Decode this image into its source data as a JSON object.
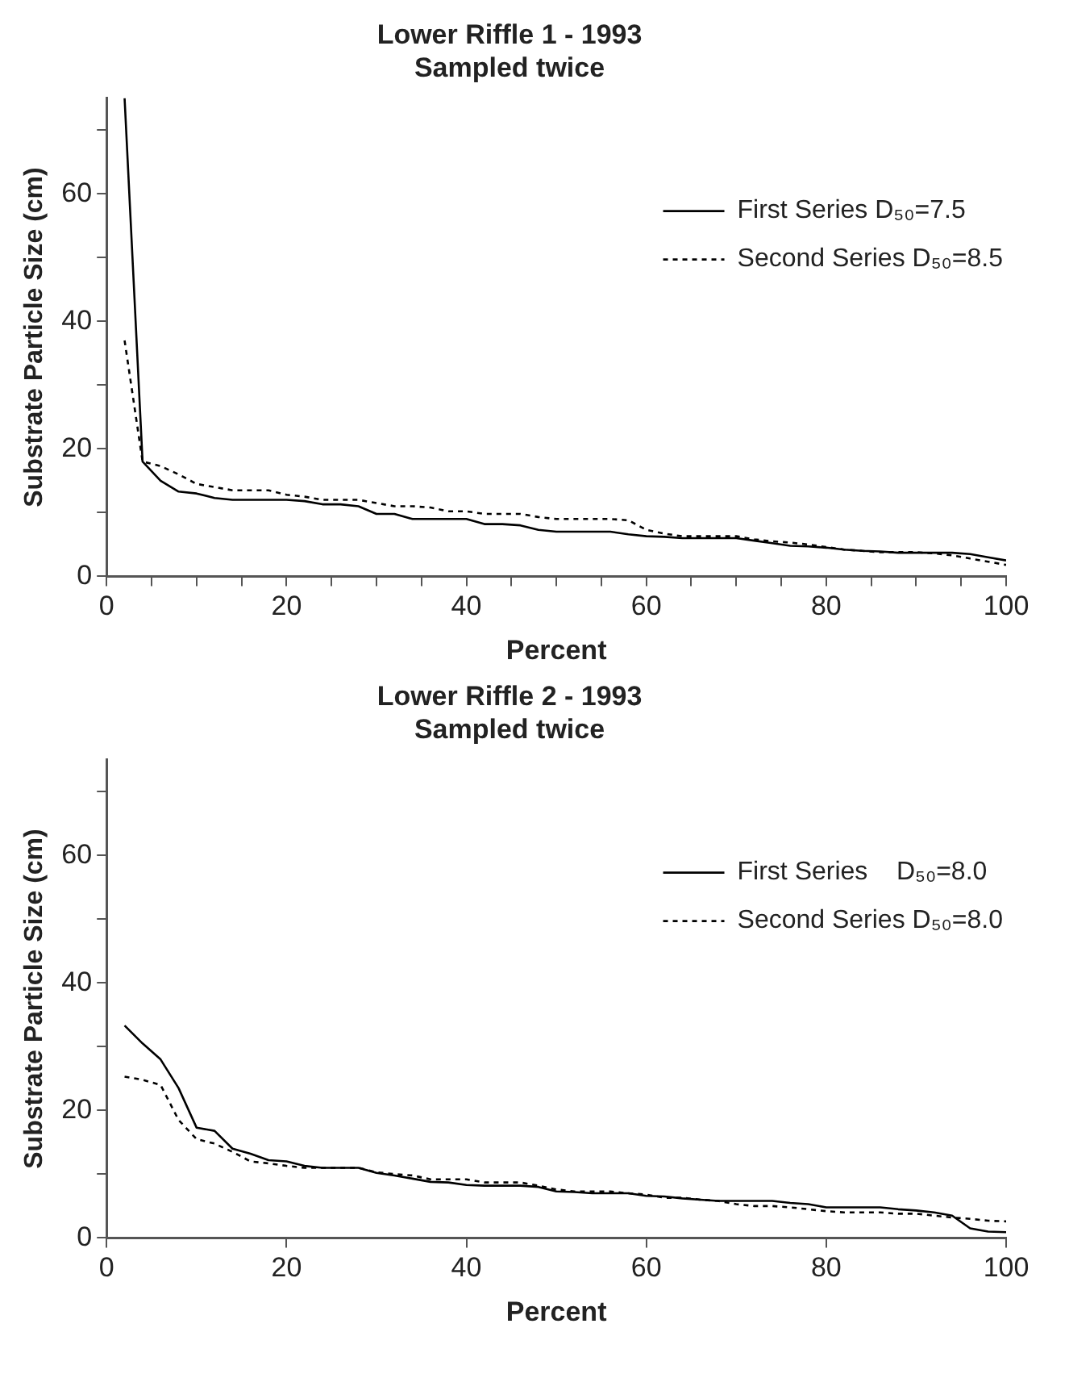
{
  "chart_data": [
    {
      "type": "line",
      "title": "Lower Riffle 1 - 1993",
      "subtitle": "Sampled twice",
      "xlabel": "Percent",
      "ylabel": "Substrate Particle Size (cm)",
      "x": [
        2,
        4,
        6,
        8,
        10,
        12,
        14,
        16,
        18,
        20,
        22,
        24,
        26,
        28,
        30,
        32,
        34,
        36,
        38,
        40,
        42,
        44,
        46,
        48,
        50,
        52,
        54,
        56,
        58,
        60,
        62,
        64,
        66,
        68,
        70,
        72,
        74,
        76,
        78,
        80,
        82,
        84,
        86,
        88,
        90,
        92,
        94,
        96,
        98,
        100
      ],
      "xlim": [
        0,
        100
      ],
      "ylim": [
        0,
        75
      ],
      "xticks": [
        0,
        {
          "value": 5,
          "label": null
        },
        {
          "value": 10,
          "label": null
        },
        {
          "value": 15,
          "label": null
        },
        20,
        {
          "value": 25,
          "label": null
        },
        {
          "value": 30,
          "label": null
        },
        {
          "value": 35,
          "label": null
        },
        40,
        {
          "value": 45,
          "label": null
        },
        {
          "value": 50,
          "label": null
        },
        {
          "value": 55,
          "label": null
        },
        60,
        {
          "value": 65,
          "label": null
        },
        {
          "value": 70,
          "label": null
        },
        {
          "value": 75,
          "label": null
        },
        80,
        {
          "value": 85,
          "label": null
        },
        {
          "value": 90,
          "label": null
        },
        {
          "value": 95,
          "label": null
        },
        100
      ],
      "yticks": [
        0,
        {
          "value": 10,
          "label": null
        },
        20,
        {
          "value": 30,
          "label": null
        },
        40,
        {
          "value": 50,
          "label": null
        },
        60,
        {
          "value": 70,
          "label": null
        }
      ],
      "grid": false,
      "legend": "top right",
      "series": [
        {
          "name": "First Series D₅₀=7.5",
          "color": "#000000",
          "line_style": "solid",
          "values": [
            75,
            18,
            15,
            13.3,
            13,
            12.3,
            12,
            12,
            12,
            12,
            11.8,
            11.3,
            11.3,
            11,
            9.8,
            9.8,
            9,
            9,
            9,
            9,
            8.2,
            8.2,
            8,
            7.3,
            7,
            7,
            7,
            7,
            6.6,
            6.3,
            6.2,
            6,
            6,
            6,
            6,
            5.6,
            5.2,
            4.8,
            4.7,
            4.5,
            4.2,
            4,
            3.9,
            3.7,
            3.7,
            3.7,
            3.7,
            3.5,
            3,
            2.5
          ]
        },
        {
          "name": "Second Series D₅₀=8.5",
          "color": "#000000",
          "line_style": "dashed",
          "values": [
            37,
            18,
            17.3,
            16,
            14.5,
            14,
            13.5,
            13.5,
            13.5,
            12.8,
            12.5,
            12,
            12,
            12,
            11.5,
            11,
            11,
            10.8,
            10.2,
            10.2,
            9.8,
            9.8,
            9.8,
            9.3,
            9,
            9,
            9,
            9,
            8.8,
            7.3,
            6.7,
            6.3,
            6.3,
            6.3,
            6.3,
            5.8,
            5.5,
            5.3,
            5,
            4.6,
            4.2,
            4,
            3.8,
            3.8,
            3.8,
            3.6,
            3.3,
            2.8,
            2.3,
            1.8
          ]
        }
      ]
    },
    {
      "type": "line",
      "title": "Lower Riffle 2 - 1993",
      "subtitle": "Sampled twice",
      "xlabel": "Percent",
      "ylabel": "Substrate Particle Size (cm)",
      "x": [
        2,
        4,
        6,
        8,
        10,
        12,
        14,
        16,
        18,
        20,
        22,
        24,
        26,
        28,
        30,
        32,
        34,
        36,
        38,
        40,
        42,
        44,
        46,
        48,
        50,
        52,
        54,
        56,
        58,
        60,
        62,
        64,
        66,
        68,
        70,
        72,
        74,
        76,
        78,
        80,
        82,
        84,
        86,
        88,
        90,
        92,
        94,
        96,
        98,
        100
      ],
      "xlim": [
        0,
        100
      ],
      "ylim": [
        0,
        75
      ],
      "xticks": [
        0,
        20,
        40,
        60,
        80,
        100
      ],
      "yticks": [
        0,
        {
          "value": 10,
          "label": null
        },
        20,
        {
          "value": 30,
          "label": null
        },
        40,
        {
          "value": 50,
          "label": null
        },
        60,
        {
          "value": 70,
          "label": null
        }
      ],
      "grid": false,
      "legend": "top right",
      "series": [
        {
          "name": "First Series    D₅₀=8.0",
          "color": "#000000",
          "line_style": "solid",
          "values": [
            33.3,
            30.5,
            28,
            23.5,
            17.3,
            16.8,
            14,
            13.2,
            12.2,
            12,
            11.3,
            11,
            11,
            11,
            10.2,
            9.8,
            9.3,
            8.8,
            8.7,
            8.3,
            8.2,
            8.2,
            8.2,
            8,
            7.3,
            7.2,
            7,
            7,
            7,
            6.6,
            6.5,
            6.2,
            6,
            5.8,
            5.8,
            5.8,
            5.8,
            5.5,
            5.3,
            4.8,
            4.8,
            4.8,
            4.8,
            4.5,
            4.3,
            4,
            3.5,
            1.5,
            1,
            0.9
          ]
        },
        {
          "name": "Second Series D₅₀=8.0",
          "color": "#000000",
          "line_style": "dashed",
          "values": [
            25.3,
            24.8,
            24,
            18.5,
            15.5,
            14.8,
            13.5,
            12,
            11.7,
            11.3,
            11,
            11,
            11,
            11,
            10.3,
            10,
            9.8,
            9.2,
            9.2,
            9.2,
            8.7,
            8.7,
            8.7,
            8.2,
            7.6,
            7.3,
            7.3,
            7.3,
            7,
            6.8,
            6.3,
            6.3,
            6,
            5.8,
            5.3,
            5,
            5,
            4.8,
            4.5,
            4.2,
            4,
            4,
            4,
            3.8,
            3.8,
            3.5,
            3.2,
            3,
            2.7,
            2.6
          ]
        }
      ]
    }
  ]
}
